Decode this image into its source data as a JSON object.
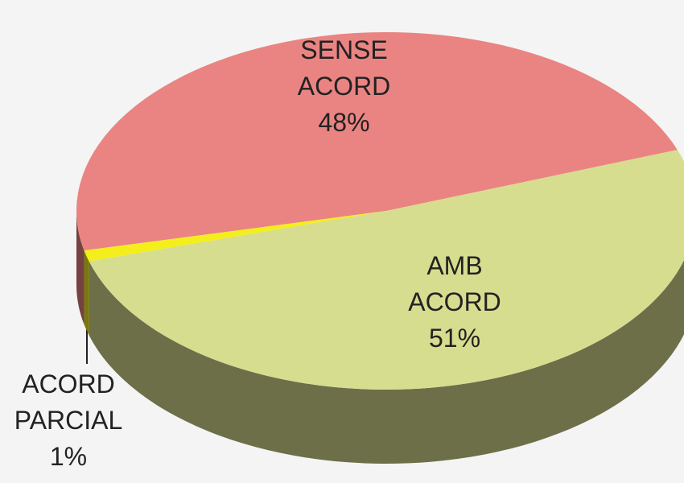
{
  "chart_data": {
    "type": "pie3d",
    "categories": [
      "SENSE ACORD",
      "ACORD PARCIAL",
      "AMB ACORD"
    ],
    "values": [
      48,
      1,
      51
    ],
    "value_labels": [
      "48%",
      "1%",
      "51%"
    ],
    "colors": [
      "#ea8482",
      "#f4ef1c",
      "#d7dd8f"
    ]
  }
}
